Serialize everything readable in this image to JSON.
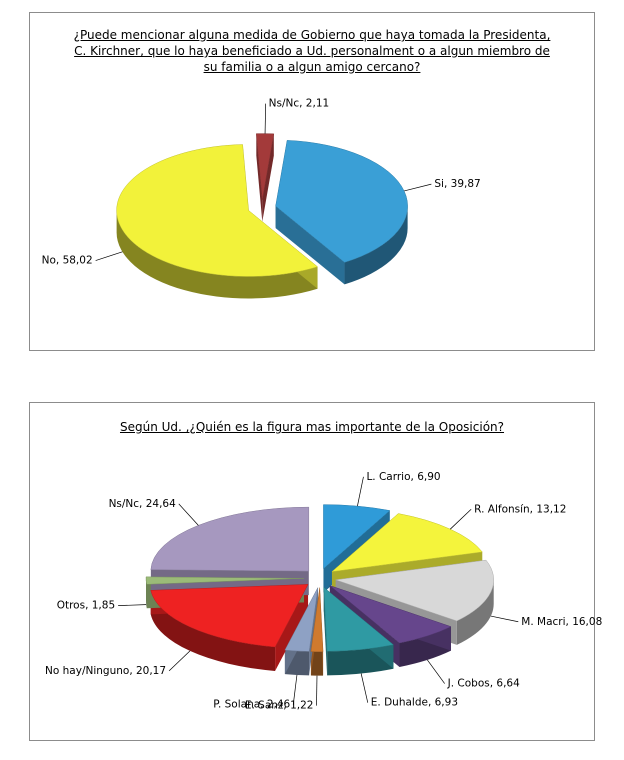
{
  "chart_data": [
    {
      "type": "pie",
      "title": "¿Puede mencionar alguna medida de Gobierno que haya tomada la Presidenta, C. Kirchner, que lo haya beneficiado a Ud. personalment o a algun miembro de su familia o a algun amigo cercano?",
      "values": [
        39.87,
        58.02,
        2.11
      ],
      "value_labels": [
        "Si, 39,87",
        "No, 58,02",
        "Ns/Nc, 2,11"
      ],
      "colors": [
        "#3a9fd6",
        "#f2f23a",
        "#a33a3a"
      ]
    },
    {
      "type": "pie",
      "title": "Según Ud. ,¿Quién es la figura mas importante de la Oposición?",
      "values": [
        6.9,
        13.12,
        16.08,
        6.64,
        6.93,
        1.22,
        2.46,
        20.17,
        1.85,
        24.64
      ],
      "value_labels": [
        "L. Carrio, 6,90",
        "R. Alfonsín, 13,12",
        "M. Macri, 16,08",
        "J. Cobos, 6,64",
        "E. Duhalde, 6,93",
        "E. Sanz, 1,22",
        "P. Solana, 2,46",
        "No hay/Ninguno, 20,17",
        "Otros, 1,85",
        "Ns/Nc, 24,64"
      ],
      "colors": [
        "#2f9bd8",
        "#f4f43c",
        "#d8d8d8",
        "#66468c",
        "#2f9aa3",
        "#d07a2e",
        "#8ea1c4",
        "#ee2222",
        "#9bbb78",
        "#a698bf"
      ]
    }
  ]
}
